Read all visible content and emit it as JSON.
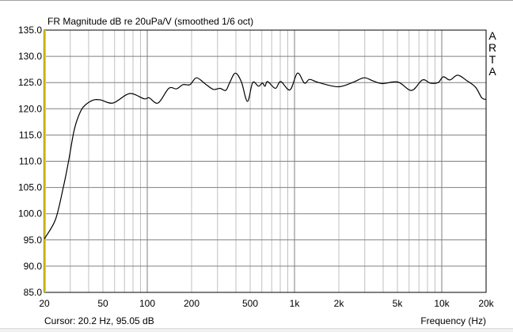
{
  "chart_data": {
    "type": "line",
    "title": "FR Magnitude dB re 20uPa/V (smoothed 1/6 oct)",
    "xlabel": "Frequency (Hz)",
    "ylabel": "",
    "x_scale": "log",
    "xlim": [
      20,
      20000
    ],
    "ylim": [
      85,
      135
    ],
    "grid": true,
    "x_ticks": [
      20,
      50,
      100,
      200,
      500,
      1000,
      2000,
      5000,
      10000,
      20000
    ],
    "x_tick_labels": [
      "20",
      "50",
      "100",
      "200",
      "500",
      "1k",
      "2k",
      "5k",
      "10k",
      "20k"
    ],
    "y_ticks": [
      135,
      130,
      125,
      120,
      115,
      110,
      105,
      100,
      95,
      90,
      85
    ],
    "y_tick_labels": [
      "135.0",
      "130.0",
      "125.0",
      "120.0",
      "115.0",
      "110.0",
      "105.0",
      "100.0",
      "95.0",
      "90.0",
      "85.0"
    ],
    "series": [
      {
        "color": "#000000",
        "x": [
          20,
          23.8,
          26.9,
          29.2,
          31.7,
          33.8,
          36.7,
          42.4,
          48,
          58.6,
          75.7,
          95.2,
          103,
          118.5,
          140,
          158,
          175,
          195,
          216,
          249,
          281,
          312,
          341,
          362,
          396,
          436,
          479,
          520,
          569,
          605,
          631,
          656,
          742,
          806,
          931,
          1047,
          1168,
          1267,
          1458,
          1977,
          2474,
          2966,
          3419,
          3950,
          5037,
          6236,
          7386,
          8350,
          9440,
          10240,
          11350,
          12830,
          14750,
          16980,
          18680,
          20000
        ],
        "y": [
          95.2,
          98.9,
          105.0,
          110.0,
          115.6,
          118.3,
          120.3,
          121.6,
          121.7,
          121.1,
          122.9,
          121.9,
          122.1,
          121.1,
          123.9,
          123.8,
          124.6,
          124.6,
          125.9,
          124.7,
          123.7,
          123.9,
          123.5,
          124.9,
          126.8,
          125.1,
          121.4,
          125.0,
          124.3,
          124.9,
          124.3,
          125.2,
          123.9,
          125.2,
          123.6,
          126.8,
          124.9,
          125.6,
          125.0,
          124.2,
          125.0,
          125.9,
          125.3,
          124.8,
          125.1,
          123.5,
          125.5,
          124.9,
          125.0,
          126.1,
          125.5,
          126.4,
          125.4,
          124.1,
          122.1,
          121.8
        ]
      }
    ],
    "cursor": {
      "frequency": 20.2,
      "value": 95.05,
      "color": "#e8d000"
    }
  },
  "cursor_text": "Cursor: 20.2 Hz, 95.05 dB",
  "brand": "ARTA",
  "colors": {
    "grid_minor": "#c0c0c0",
    "grid_major": "#808080",
    "curve": "#000000",
    "cursor": "#e8d000"
  }
}
